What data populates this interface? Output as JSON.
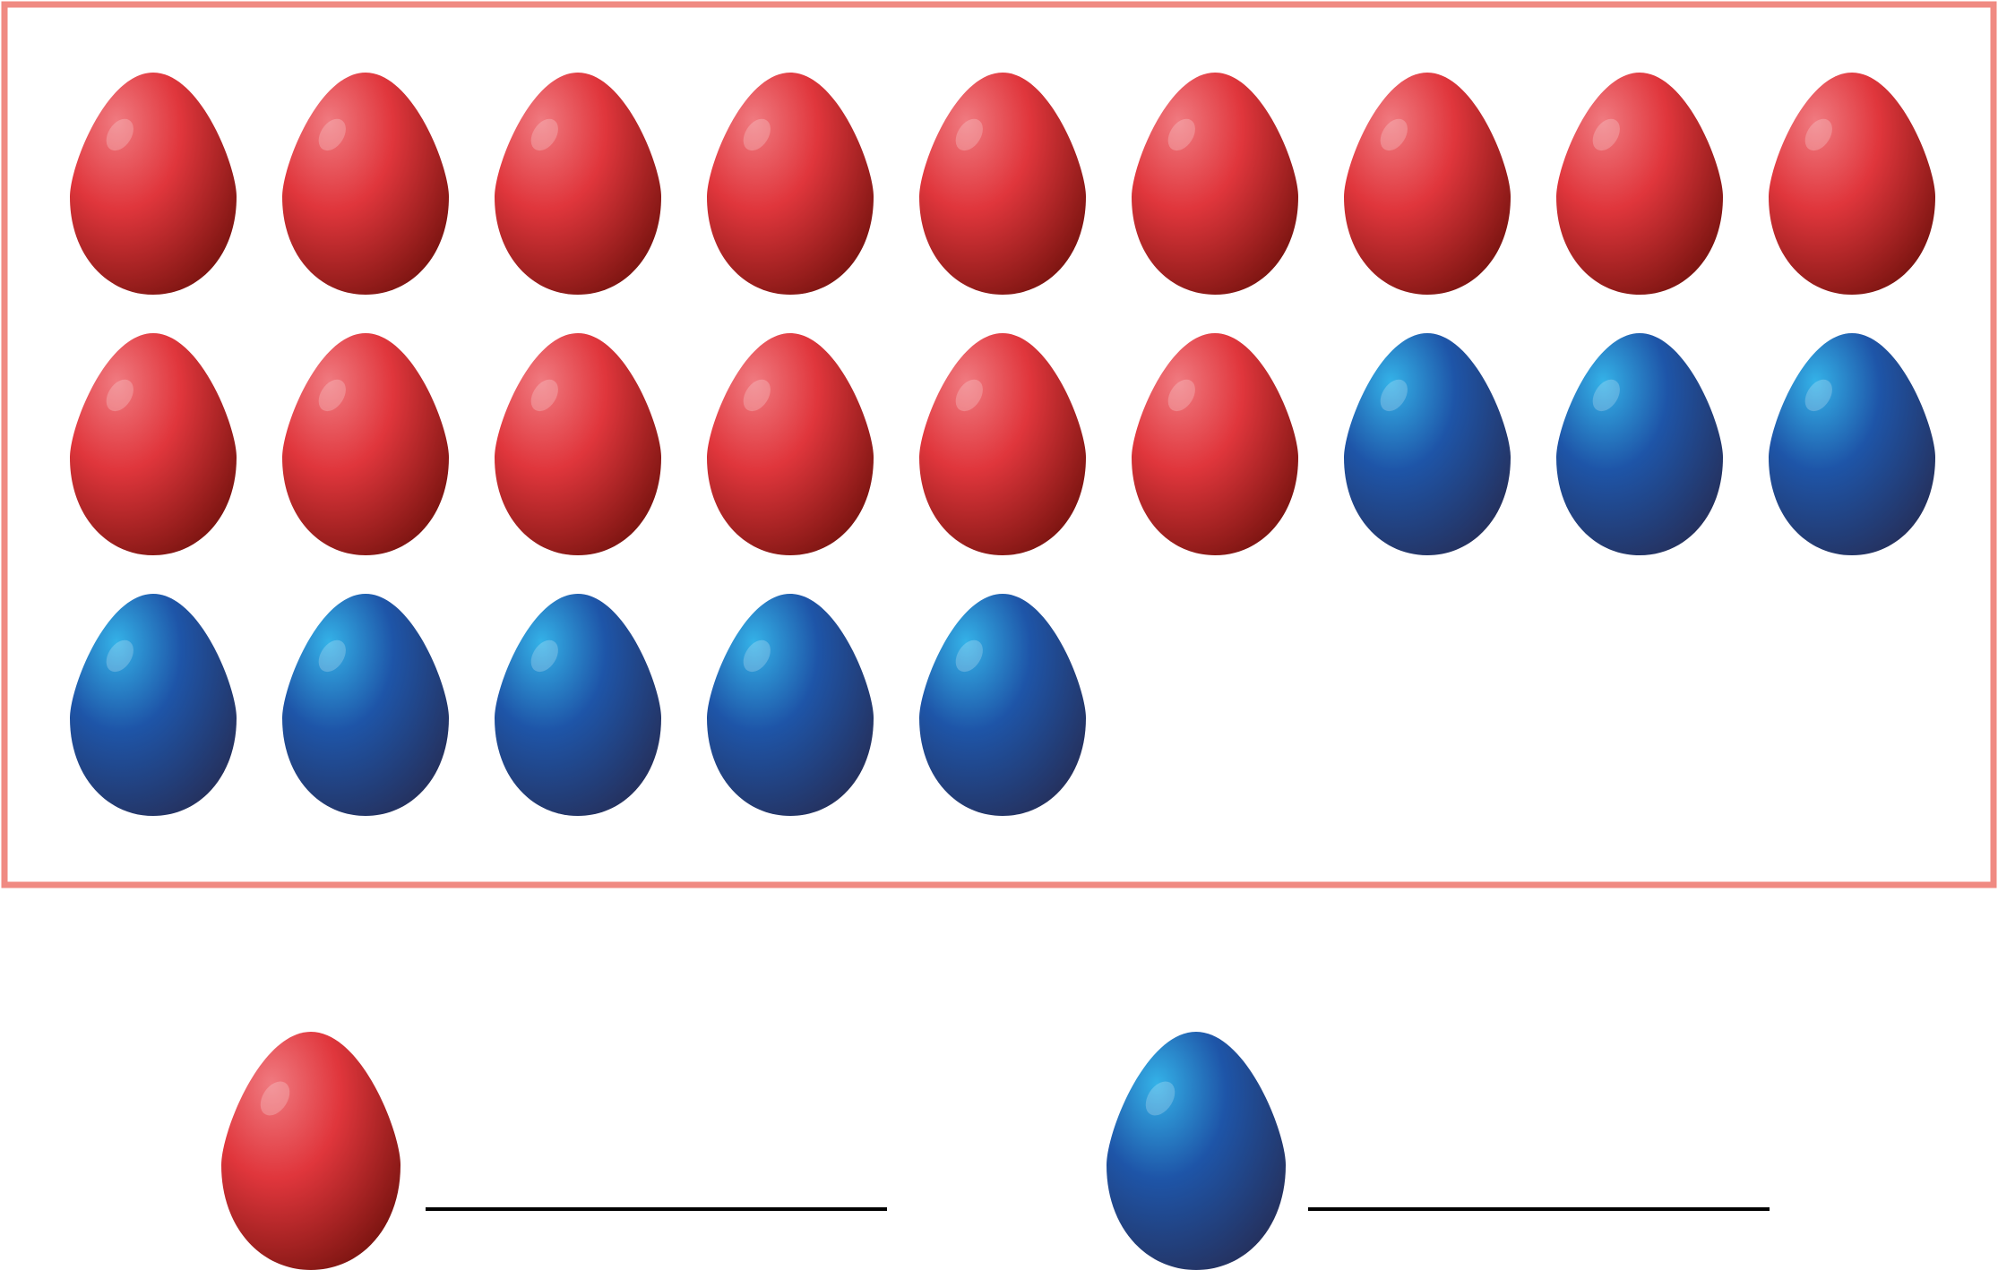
{
  "colors": {
    "frame_border": "#f08a82",
    "answer_line": "#000000",
    "red_egg": {
      "highlight": "#f07a80",
      "mid": "#e0363c",
      "dark": "#7a1410"
    },
    "blue_egg": {
      "highlight": "#34b2e8",
      "mid": "#1e55a8",
      "dark": "#25305c"
    }
  },
  "egg_grid": {
    "rows": [
      [
        "red",
        "red",
        "red",
        "red",
        "red",
        "red",
        "red",
        "red",
        "red"
      ],
      [
        "red",
        "red",
        "red",
        "red",
        "red",
        "red",
        "blue",
        "blue",
        "blue"
      ],
      [
        "blue",
        "blue",
        "blue",
        "blue",
        "blue"
      ]
    ]
  },
  "answer_prompts": [
    {
      "egg": "red",
      "answer": ""
    },
    {
      "egg": "blue",
      "answer": ""
    }
  ]
}
